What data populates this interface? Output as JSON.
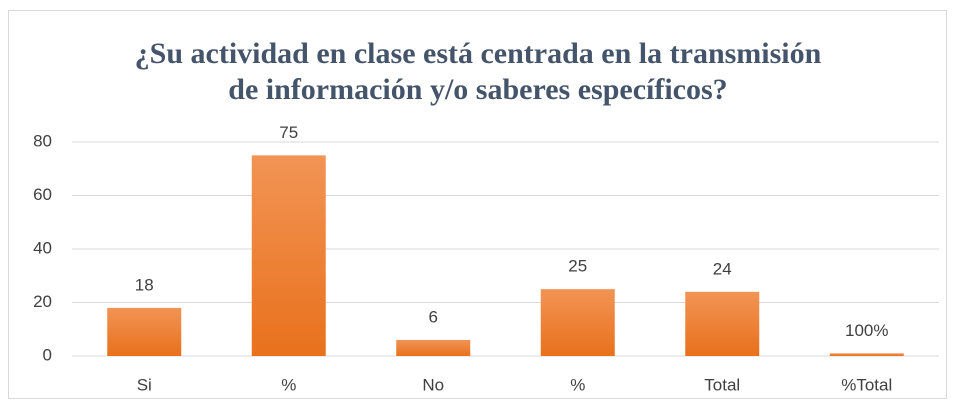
{
  "chart_data": {
    "type": "bar",
    "title": "¿Su actividad en clase está centrada en la transmisión\nde información y/o saberes específicos?",
    "categories": [
      "Si",
      "%",
      "No",
      "%",
      "Total",
      "%Total"
    ],
    "values": [
      18,
      75,
      6,
      25,
      24,
      1
    ],
    "value_labels": [
      "18",
      "75",
      "6",
      "25",
      "24",
      "100%"
    ],
    "color": "#ed7d31",
    "ylim": [
      0,
      80
    ],
    "yticks": [
      0,
      20,
      40,
      60,
      80
    ],
    "grid": true
  }
}
